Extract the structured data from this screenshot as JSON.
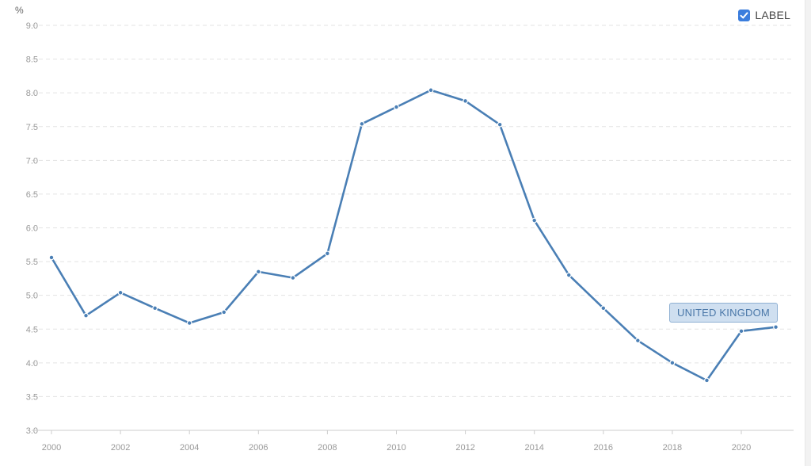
{
  "unit_label": "%",
  "legend": {
    "label": "LABEL",
    "checked": true
  },
  "colors": {
    "line": "#4a7fb5",
    "checkbox": "#3b7ddd",
    "grid": "#e3e3e3",
    "tag_bg": "#cfdff0"
  },
  "series_tag": "UNITED KINGDOM",
  "chart_data": {
    "type": "line",
    "ylabel": "%",
    "ylim": [
      3.0,
      9.0
    ],
    "yticks": [
      "3.0",
      "3.5",
      "4.0",
      "4.5",
      "5.0",
      "5.5",
      "6.0",
      "6.5",
      "7.0",
      "7.5",
      "8.0",
      "8.5",
      "9.0"
    ],
    "xlim": [
      2000,
      2021
    ],
    "xticks": [
      "2000",
      "2002",
      "2004",
      "2006",
      "2008",
      "2010",
      "2012",
      "2014",
      "2016",
      "2018",
      "2020"
    ],
    "grid": true,
    "series": [
      {
        "name": "UNITED KINGDOM",
        "x": [
          2000,
          2001,
          2002,
          2003,
          2004,
          2005,
          2006,
          2007,
          2008,
          2009,
          2010,
          2011,
          2012,
          2013,
          2014,
          2015,
          2016,
          2017,
          2018,
          2019,
          2020,
          2021
        ],
        "values": [
          5.56,
          4.7,
          5.04,
          4.81,
          4.59,
          4.75,
          5.35,
          5.26,
          5.62,
          7.54,
          7.79,
          8.04,
          7.88,
          7.53,
          6.11,
          5.3,
          4.81,
          4.33,
          4.0,
          3.74,
          4.47,
          4.53
        ]
      }
    ]
  }
}
